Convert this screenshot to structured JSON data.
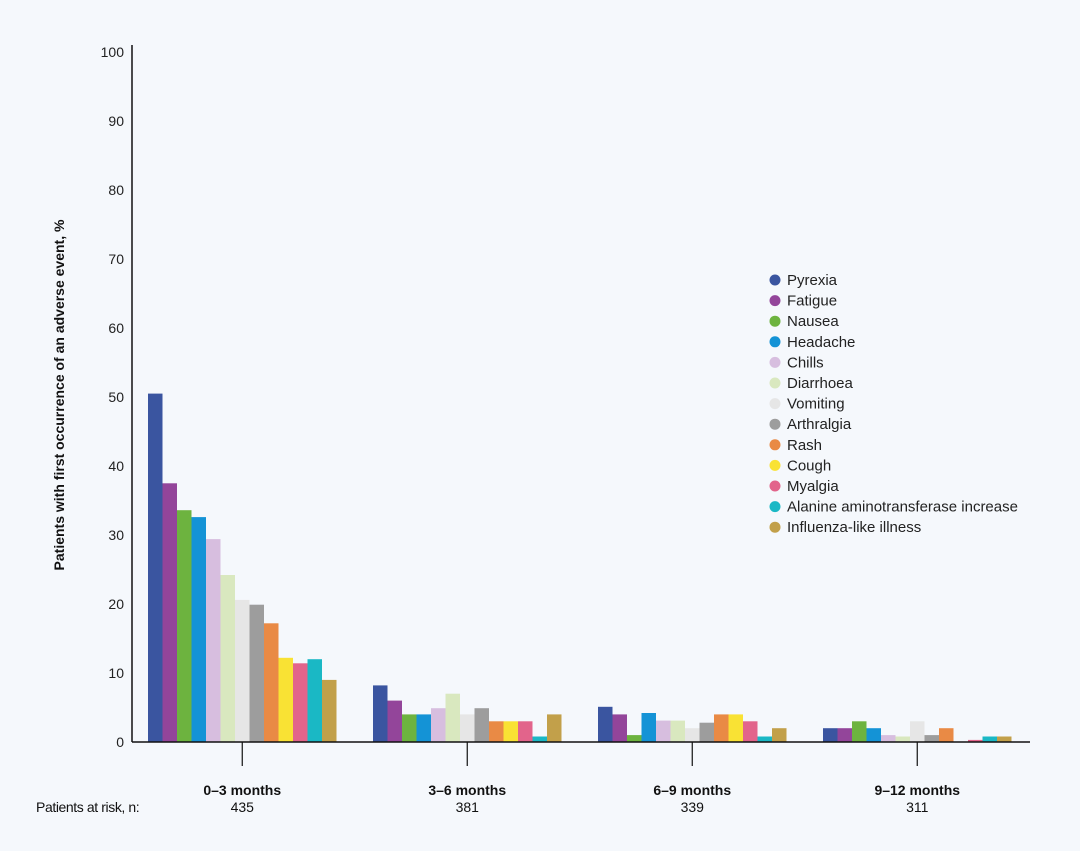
{
  "chart_data": {
    "type": "bar",
    "title": "",
    "xlabel": "",
    "ylabel": "Patients with first occurrence of an adverse event, %",
    "ylim": [
      0,
      100
    ],
    "yticks": [
      0,
      10,
      20,
      30,
      40,
      50,
      60,
      70,
      80,
      90,
      100
    ],
    "categories": [
      "0–3 months",
      "3–6 months",
      "6–9 months",
      "9–12 months"
    ],
    "risk_label": "Patients at risk, n:",
    "patients_at_risk": [
      "435",
      "381",
      "339",
      "311"
    ],
    "legend_position": "right",
    "series": [
      {
        "name": "Pyrexia",
        "color": "#3a55a0",
        "values": [
          50.5,
          8.2,
          5.1,
          2.0
        ]
      },
      {
        "name": "Fatigue",
        "color": "#93459a",
        "values": [
          37.5,
          6.0,
          4.0,
          2.0
        ]
      },
      {
        "name": "Nausea",
        "color": "#6db33f",
        "values": [
          33.6,
          4.0,
          1.0,
          3.0
        ]
      },
      {
        "name": "Headache",
        "color": "#1493d6",
        "values": [
          32.6,
          4.0,
          4.2,
          2.0
        ]
      },
      {
        "name": "Chills",
        "color": "#d7bedf",
        "values": [
          29.4,
          4.9,
          3.1,
          1.0
        ]
      },
      {
        "name": "Diarrhoea",
        "color": "#d9e8bf",
        "values": [
          24.2,
          7.0,
          3.1,
          0.8
        ]
      },
      {
        "name": "Vomiting",
        "color": "#e6e6e6",
        "values": [
          20.6,
          4.0,
          2.0,
          3.0
        ]
      },
      {
        "name": "Arthralgia",
        "color": "#9d9d9d",
        "values": [
          19.9,
          4.9,
          2.8,
          1.0
        ]
      },
      {
        "name": "Rash",
        "color": "#e98a45",
        "values": [
          17.2,
          3.0,
          4.0,
          2.0
        ]
      },
      {
        "name": "Cough",
        "color": "#f9e234",
        "values": [
          12.2,
          3.0,
          4.0,
          0.0
        ]
      },
      {
        "name": "Myalgia",
        "color": "#e2648b",
        "values": [
          11.4,
          3.0,
          3.0,
          0.3
        ]
      },
      {
        "name": "Alanine aminotransferase increase",
        "color": "#1ab8c5",
        "values": [
          12.0,
          0.8,
          0.8,
          0.8
        ]
      },
      {
        "name": "Influenza-like illness",
        "color": "#c2a04a",
        "values": [
          9.0,
          4.0,
          2.0,
          0.8
        ]
      }
    ]
  }
}
